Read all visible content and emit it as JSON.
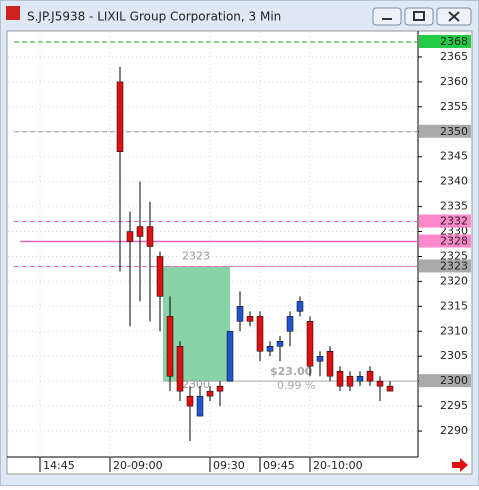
{
  "window_title": "S.JP.J5938 - LIXIL Group Corporation, 3 Min",
  "chart_data": {
    "type": "candlestick",
    "open": [
      2360,
      2330,
      2331,
      2331,
      2325,
      2313,
      2307,
      2297,
      2293,
      2298,
      2299,
      2300,
      2312,
      2313,
      2313,
      2306,
      2307,
      2310,
      2314,
      2312,
      2304,
      2306,
      2302,
      2301,
      2300,
      2302,
      2300,
      2299
    ],
    "high": [
      2363,
      2334,
      2340,
      2336,
      2326,
      2317,
      2308,
      2299,
      2299,
      2299,
      2300,
      2310,
      2318,
      2314,
      2314,
      2308,
      2309,
      2314,
      2317,
      2313,
      2306,
      2307,
      2303,
      2302,
      2302,
      2303,
      2301,
      2300
    ],
    "low": [
      2322,
      2311,
      2316,
      2312,
      2310,
      2298,
      2296,
      2288,
      2293,
      2296,
      2295,
      2300,
      2310,
      2311,
      2304,
      2305,
      2304,
      2307,
      2313,
      2301,
      2301,
      2300,
      2298,
      2298,
      2299,
      2299,
      2296,
      2298
    ],
    "close": [
      2346,
      2328,
      2329,
      2327,
      2317,
      2301,
      2298,
      2295,
      2297,
      2297,
      2298,
      2310,
      2315,
      2312,
      2306,
      2307,
      2308,
      2313,
      2316,
      2303,
      2305,
      2301,
      2299,
      2299,
      2301,
      2300,
      2299,
      2298
    ],
    "up_color": "#2255cc",
    "down_color": "#dd1111",
    "ylim": [
      2284.8,
      2370
    ],
    "yticks": [
      2290,
      2295,
      2300,
      2305,
      2310,
      2315,
      2320,
      2325,
      2330,
      2335,
      2340,
      2345,
      2350,
      2355,
      2360,
      2365
    ],
    "x_labels": [
      "14:45",
      "20-09:00",
      "09:30",
      "09:45",
      "20-10:00"
    ],
    "grid": true,
    "levels": [
      {
        "value": 2368,
        "color": "#22aa22",
        "label_color": "#22cc44",
        "style": "dash"
      },
      {
        "value": 2350,
        "color": "#999999",
        "label_color": "#aaaaaa",
        "style": "dash"
      },
      {
        "value": 2332,
        "color": "#ee66bb",
        "label_color": "#ff88cc",
        "style": "dash"
      },
      {
        "value": 2328,
        "color": "#ee66bb",
        "label_color": "#ff88cc",
        "style": "solid"
      },
      {
        "value": 2323,
        "color": "#ee66bb",
        "label_color": "#aaaaaa",
        "style": "dash"
      },
      {
        "value": 2300,
        "color": "#999999",
        "label_color": "#aaaaaa",
        "style": "none"
      }
    ],
    "measure": {
      "top": 2323,
      "bottom": 2300,
      "change": "$23.00",
      "percent": "0.99 %",
      "color": "#88d4a8"
    }
  }
}
